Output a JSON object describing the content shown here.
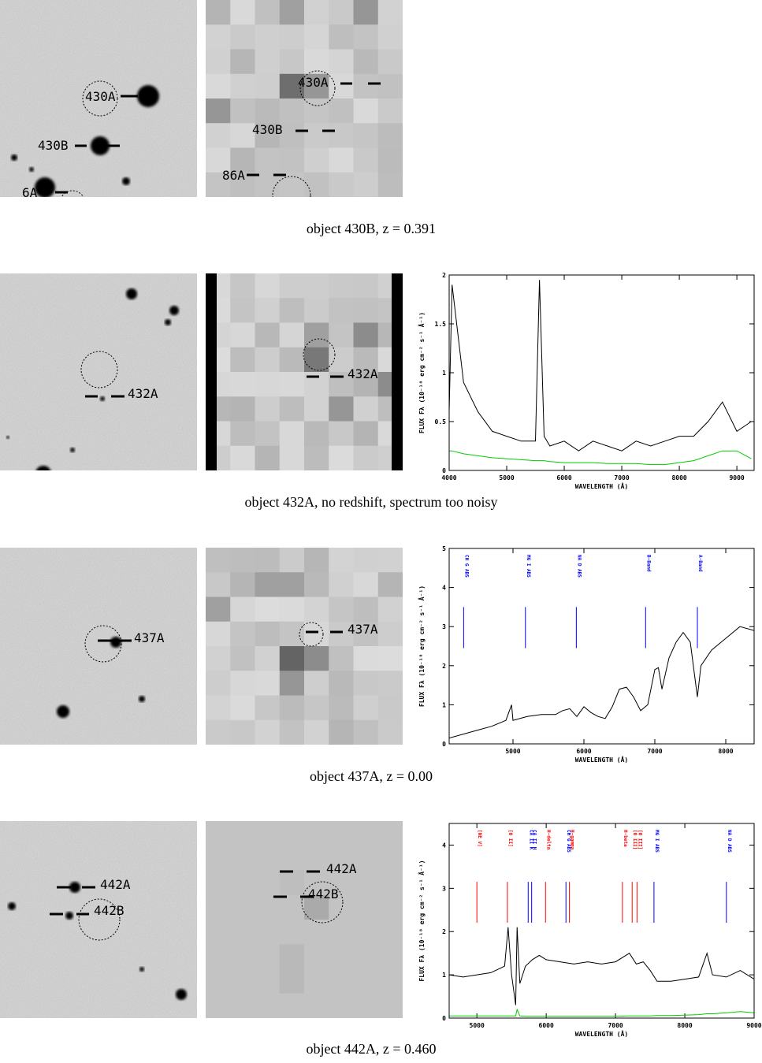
{
  "panels": [
    {
      "caption": "object 430B, z = 0.391",
      "optical_labels": [
        "430A",
        "430B",
        "6A"
      ],
      "pixel_labels": [
        "430A",
        "430B",
        "86A"
      ]
    },
    {
      "caption": "object 432A, no redshift, spectrum too noisy",
      "optical_labels": [
        "432A"
      ],
      "pixel_labels": [
        "432A"
      ]
    },
    {
      "caption": "object 437A, z = 0.00",
      "optical_labels": [
        "437A"
      ],
      "pixel_labels": [
        "437A"
      ]
    },
    {
      "caption": "object 442A, z = 0.460",
      "optical_labels": [
        "442A",
        "442B"
      ],
      "pixel_labels": [
        "442A",
        "442B"
      ]
    }
  ],
  "chart_data": [
    {
      "type": "line",
      "xlabel": "WAVELENGTH (Å)",
      "ylabel": "FLUX Fλ (10⁻¹⁸ erg cm⁻² s⁻¹ Å⁻¹)",
      "xlim": [
        4000,
        9300
      ],
      "ylim": [
        0,
        2
      ],
      "xticks": [
        4000,
        5000,
        6000,
        7000,
        8000,
        9000
      ],
      "yticks": [
        0,
        0.5,
        1,
        1.5,
        2
      ],
      "x": [
        4000,
        4050,
        4250,
        4500,
        4750,
        5000,
        5250,
        5500,
        5570,
        5650,
        5750,
        6000,
        6250,
        6500,
        6750,
        7000,
        7250,
        7500,
        7750,
        8000,
        8250,
        8500,
        8750,
        9000,
        9250
      ],
      "series": [
        {
          "color": "#000000",
          "values": [
            0.6,
            1.9,
            0.9,
            0.6,
            0.4,
            0.35,
            0.3,
            0.3,
            1.95,
            0.35,
            0.25,
            0.3,
            0.2,
            0.3,
            0.25,
            0.2,
            0.3,
            0.25,
            0.3,
            0.35,
            0.35,
            0.5,
            0.7,
            0.4,
            0.5
          ]
        },
        {
          "color": "#00cc00",
          "values": [
            0.2,
            0.2,
            0.17,
            0.15,
            0.13,
            0.12,
            0.11,
            0.1,
            0.1,
            0.1,
            0.09,
            0.08,
            0.08,
            0.08,
            0.07,
            0.07,
            0.07,
            0.06,
            0.06,
            0.08,
            0.1,
            0.15,
            0.2,
            0.2,
            0.12
          ]
        }
      ],
      "line_markers": []
    },
    {
      "type": "line",
      "xlabel": "WAVELENGTH (Å)",
      "ylabel": "FLUX Fλ (10⁻¹⁸ erg cm⁻² s⁻¹ Å⁻¹)",
      "xlim": [
        4100,
        8400
      ],
      "ylim": [
        0,
        5
      ],
      "xticks": [
        5000,
        6000,
        7000,
        8000
      ],
      "yticks": [
        0,
        1,
        2,
        3,
        4,
        5
      ],
      "x": [
        4100,
        4300,
        4500,
        4700,
        4900,
        4980,
        5000,
        5200,
        5400,
        5600,
        5700,
        5800,
        5900,
        6000,
        6100,
        6200,
        6300,
        6400,
        6500,
        6600,
        6700,
        6800,
        6900,
        7000,
        7050,
        7100,
        7200,
        7300,
        7400,
        7500,
        7600,
        7650,
        7800,
        8000,
        8200,
        8400
      ],
      "series": [
        {
          "color": "#000000",
          "values": [
            0.15,
            0.25,
            0.35,
            0.45,
            0.6,
            1.0,
            0.6,
            0.7,
            0.75,
            0.75,
            0.85,
            0.9,
            0.7,
            0.95,
            0.8,
            0.7,
            0.65,
            0.95,
            1.4,
            1.45,
            1.2,
            0.85,
            1.0,
            1.9,
            1.95,
            1.4,
            2.2,
            2.6,
            2.85,
            2.6,
            1.2,
            2.0,
            2.4,
            2.7,
            3.0,
            2.9
          ]
        }
      ],
      "line_markers": [
        {
          "label": "CH G ABS",
          "x": 4304,
          "color": "#0000ff"
        },
        {
          "label": "MG I ABS",
          "x": 5175,
          "color": "#0000ff"
        },
        {
          "label": "NA D ABS",
          "x": 5893,
          "color": "#0000ff"
        },
        {
          "label": "B-Band",
          "x": 6870,
          "color": "#0000ff"
        },
        {
          "label": "A-Band",
          "x": 7600,
          "color": "#0000ff"
        }
      ]
    },
    {
      "type": "line",
      "xlabel": "WAVELENGTH (Å)",
      "ylabel": "FLUX Fλ (10⁻¹⁸ erg cm⁻² s⁻¹ Å⁻¹)",
      "xlim": [
        4600,
        9000
      ],
      "ylim": [
        0,
        4.5
      ],
      "xticks": [
        5000,
        6000,
        7000,
        8000,
        9000
      ],
      "yticks": [
        0,
        1,
        2,
        3,
        4
      ],
      "x": [
        4600,
        4800,
        5000,
        5200,
        5400,
        5450,
        5500,
        5560,
        5580,
        5620,
        5700,
        5800,
        5900,
        6000,
        6200,
        6400,
        6600,
        6800,
        7000,
        7200,
        7300,
        7400,
        7500,
        7600,
        7800,
        8000,
        8200,
        8320,
        8400,
        8600,
        8800,
        9000
      ],
      "series": [
        {
          "color": "#000000",
          "values": [
            1.0,
            0.95,
            1.0,
            1.05,
            1.2,
            2.1,
            1.0,
            0.3,
            2.1,
            0.8,
            1.2,
            1.35,
            1.45,
            1.35,
            1.3,
            1.25,
            1.3,
            1.25,
            1.3,
            1.5,
            1.25,
            1.3,
            1.1,
            0.85,
            0.85,
            0.9,
            0.95,
            1.5,
            1.0,
            0.95,
            1.1,
            0.9
          ]
        },
        {
          "color": "#00cc00",
          "values": [
            0.05,
            0.05,
            0.05,
            0.05,
            0.05,
            0.05,
            0.05,
            0.05,
            0.2,
            0.05,
            0.04,
            0.04,
            0.04,
            0.04,
            0.04,
            0.04,
            0.04,
            0.04,
            0.04,
            0.05,
            0.05,
            0.05,
            0.05,
            0.06,
            0.06,
            0.07,
            0.08,
            0.1,
            0.1,
            0.12,
            0.15,
            0.12
          ]
        }
      ],
      "line_markers": [
        {
          "label": "[NE V]",
          "x": 5000,
          "color": "#ff0000"
        },
        {
          "label": "[O II]",
          "x": 5440,
          "color": "#ff0000"
        },
        {
          "label": "CA II K",
          "x": 5740,
          "color": "#0000ff"
        },
        {
          "label": "CA II H",
          "x": 5790,
          "color": "#0000ff"
        },
        {
          "label": "H-delta",
          "x": 5990,
          "color": "#ff0000"
        },
        {
          "label": "CH G ABS",
          "x": 6285,
          "color": "#0000ff"
        },
        {
          "label": "H-gamma",
          "x": 6335,
          "color": "#ff0000"
        },
        {
          "label": "H-beta",
          "x": 7100,
          "color": "#ff0000"
        },
        {
          "label": "[O III]",
          "x": 7240,
          "color": "#ff0000"
        },
        {
          "label": "[O III]",
          "x": 7310,
          "color": "#ff0000"
        },
        {
          "label": "MG I ABS",
          "x": 7555,
          "color": "#0000ff"
        },
        {
          "label": "NA D ABS",
          "x": 8600,
          "color": "#0000ff"
        }
      ]
    }
  ]
}
